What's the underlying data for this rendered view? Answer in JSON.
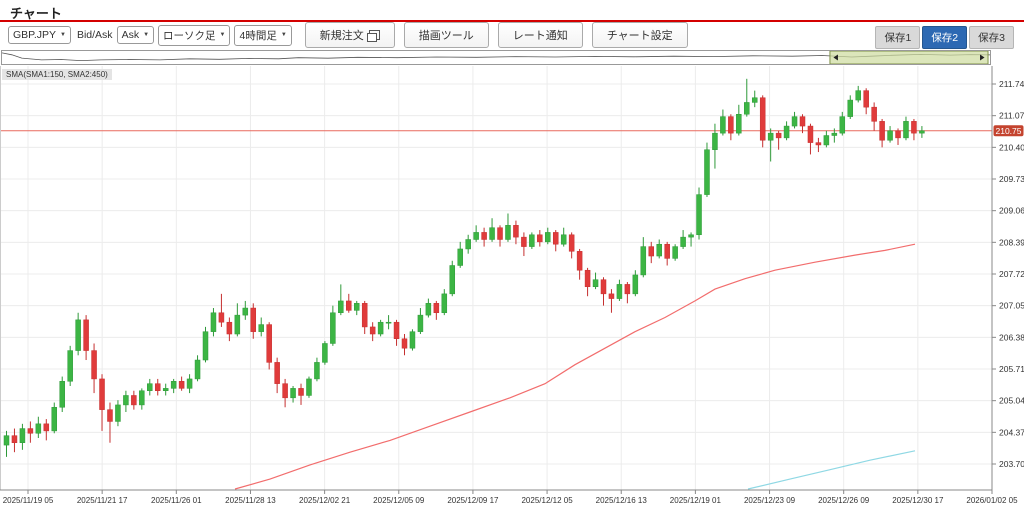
{
  "header": {
    "title": "チャート"
  },
  "toolbar": {
    "symbol_value": "GBP.JPY",
    "bid_ask_label": "Bid/Ask",
    "bid_ask_value": "Ask",
    "chart_type_value": "ローソク足",
    "timeframe_value": "4時間足",
    "new_order_label": "新規注文",
    "drawing_tools_label": "描画ツール",
    "rate_alert_label": "レート通知",
    "chart_settings_label": "チャート設定",
    "save_buttons": [
      {
        "label": "保存1",
        "active": false
      },
      {
        "label": "保存2",
        "active": true
      },
      {
        "label": "保存3",
        "active": false
      }
    ]
  },
  "indicator_label": "SMA(SMA1:150, SMA2:450)",
  "current_price_label": "210.75",
  "chart_data": {
    "type": "candlestick",
    "symbol": "GBP.JPY",
    "timeframe": "4時間足",
    "current_price": 210.75,
    "y_axis": {
      "ticks": [
        211.74,
        211.07,
        210.4,
        209.73,
        209.06,
        208.39,
        207.72,
        207.05,
        206.38,
        205.71,
        205.04,
        204.37,
        203.7
      ],
      "top_price": 211.74,
      "bottom_price": 203.7
    },
    "x_axis": {
      "labels": [
        "2025/11/19 05",
        "2025/11/21 17",
        "2025/11/26 01",
        "2025/11/28 13",
        "2025/12/02 21",
        "2025/12/05 09",
        "2025/12/09 17",
        "2025/12/12 05",
        "2025/12/16 13",
        "2025/12/19 01",
        "2025/12/23 09",
        "2025/12/26 09",
        "2025/12/30 17",
        "2026/01/02 05"
      ]
    },
    "candles": [
      [
        204.1,
        204.4,
        203.85,
        204.3
      ],
      [
        204.3,
        204.45,
        203.95,
        204.15
      ],
      [
        204.15,
        204.55,
        204.0,
        204.45
      ],
      [
        204.45,
        204.6,
        204.15,
        204.35
      ],
      [
        204.35,
        204.7,
        204.25,
        204.55
      ],
      [
        204.55,
        204.65,
        204.2,
        204.4
      ],
      [
        204.4,
        205.0,
        204.35,
        204.9
      ],
      [
        204.9,
        205.55,
        204.8,
        205.45
      ],
      [
        205.45,
        206.2,
        205.35,
        206.1
      ],
      [
        206.1,
        206.9,
        206.0,
        206.75
      ],
      [
        206.75,
        206.85,
        205.9,
        206.1
      ],
      [
        206.1,
        206.25,
        205.2,
        205.5
      ],
      [
        205.5,
        205.6,
        204.4,
        204.85
      ],
      [
        204.85,
        205.0,
        204.15,
        204.6
      ],
      [
        204.6,
        205.05,
        204.5,
        204.95
      ],
      [
        204.95,
        205.25,
        204.8,
        205.15
      ],
      [
        205.15,
        205.25,
        204.85,
        204.95
      ],
      [
        204.95,
        205.3,
        204.85,
        205.25
      ],
      [
        205.25,
        205.5,
        205.15,
        205.4
      ],
      [
        205.4,
        205.5,
        205.15,
        205.25
      ],
      [
        205.25,
        205.4,
        205.15,
        205.3
      ],
      [
        205.3,
        205.5,
        205.2,
        205.45
      ],
      [
        205.45,
        205.55,
        205.25,
        205.3
      ],
      [
        205.3,
        205.6,
        205.2,
        205.5
      ],
      [
        205.5,
        206.0,
        205.45,
        205.9
      ],
      [
        205.9,
        206.6,
        205.85,
        206.5
      ],
      [
        206.5,
        207.0,
        206.4,
        206.9
      ],
      [
        206.9,
        207.3,
        206.6,
        206.7
      ],
      [
        206.7,
        206.8,
        206.3,
        206.45
      ],
      [
        206.45,
        207.1,
        206.4,
        206.85
      ],
      [
        206.85,
        207.15,
        206.75,
        207.0
      ],
      [
        207.0,
        207.1,
        206.35,
        206.5
      ],
      [
        206.5,
        206.8,
        206.4,
        206.65
      ],
      [
        206.65,
        206.7,
        205.7,
        205.85
      ],
      [
        205.85,
        205.95,
        205.2,
        205.4
      ],
      [
        205.4,
        205.5,
        204.9,
        205.1
      ],
      [
        205.1,
        205.35,
        205.0,
        205.3
      ],
      [
        205.3,
        205.4,
        204.95,
        205.15
      ],
      [
        205.15,
        205.55,
        205.1,
        205.5
      ],
      [
        205.5,
        205.95,
        205.45,
        205.85
      ],
      [
        205.85,
        206.3,
        205.8,
        206.25
      ],
      [
        206.25,
        207.05,
        206.2,
        206.9
      ],
      [
        206.9,
        207.5,
        206.85,
        207.15
      ],
      [
        207.15,
        207.3,
        206.9,
        206.95
      ],
      [
        206.95,
        207.15,
        206.85,
        207.1
      ],
      [
        207.1,
        207.15,
        206.45,
        206.6
      ],
      [
        206.6,
        206.7,
        206.3,
        206.45
      ],
      [
        206.45,
        206.75,
        206.4,
        206.7
      ],
      [
        206.7,
        206.85,
        206.55,
        206.7
      ],
      [
        206.7,
        206.75,
        206.2,
        206.35
      ],
      [
        206.35,
        206.45,
        206.0,
        206.15
      ],
      [
        206.15,
        206.55,
        206.1,
        206.5
      ],
      [
        206.5,
        207.0,
        206.45,
        206.85
      ],
      [
        206.85,
        207.2,
        206.8,
        207.1
      ],
      [
        207.1,
        207.15,
        206.75,
        206.9
      ],
      [
        206.9,
        207.4,
        206.85,
        207.3
      ],
      [
        207.3,
        208.0,
        207.25,
        207.9
      ],
      [
        207.9,
        208.4,
        207.85,
        208.25
      ],
      [
        208.25,
        208.55,
        208.15,
        208.45
      ],
      [
        208.45,
        208.75,
        208.4,
        208.6
      ],
      [
        208.6,
        208.7,
        208.3,
        208.45
      ],
      [
        208.45,
        208.9,
        208.4,
        208.7
      ],
      [
        208.7,
        208.75,
        208.3,
        208.45
      ],
      [
        208.45,
        209.0,
        208.4,
        208.75
      ],
      [
        208.75,
        208.85,
        208.35,
        208.5
      ],
      [
        208.5,
        208.6,
        208.1,
        208.3
      ],
      [
        208.3,
        208.6,
        208.25,
        208.55
      ],
      [
        208.55,
        208.65,
        208.3,
        208.4
      ],
      [
        208.4,
        208.7,
        208.35,
        208.6
      ],
      [
        208.6,
        208.65,
        208.2,
        208.35
      ],
      [
        208.35,
        208.7,
        208.3,
        208.55
      ],
      [
        208.55,
        208.6,
        208.05,
        208.2
      ],
      [
        208.2,
        208.25,
        207.6,
        207.8
      ],
      [
        207.8,
        207.85,
        207.25,
        207.45
      ],
      [
        207.45,
        207.75,
        207.4,
        207.6
      ],
      [
        207.6,
        207.65,
        207.05,
        207.3
      ],
      [
        207.3,
        207.4,
        206.9,
        207.2
      ],
      [
        207.2,
        207.6,
        207.15,
        207.5
      ],
      [
        207.5,
        207.55,
        207.1,
        207.3
      ],
      [
        207.3,
        207.8,
        207.25,
        207.7
      ],
      [
        207.7,
        208.5,
        207.65,
        208.3
      ],
      [
        208.3,
        208.4,
        207.95,
        208.1
      ],
      [
        208.1,
        208.45,
        208.05,
        208.35
      ],
      [
        208.35,
        208.4,
        207.9,
        208.05
      ],
      [
        208.05,
        208.35,
        208.0,
        208.3
      ],
      [
        208.3,
        208.65,
        208.25,
        208.5
      ],
      [
        208.5,
        208.6,
        208.3,
        208.55
      ],
      [
        208.55,
        209.55,
        208.45,
        209.4
      ],
      [
        209.4,
        210.5,
        209.35,
        210.35
      ],
      [
        210.35,
        210.9,
        209.95,
        210.7
      ],
      [
        210.7,
        211.2,
        210.65,
        211.05
      ],
      [
        211.05,
        211.1,
        210.55,
        210.7
      ],
      [
        210.7,
        211.3,
        210.65,
        211.1
      ],
      [
        211.1,
        211.85,
        211.05,
        211.35
      ],
      [
        211.35,
        211.6,
        211.25,
        211.45
      ],
      [
        211.45,
        211.5,
        210.4,
        210.55
      ],
      [
        210.55,
        210.8,
        210.1,
        210.7
      ],
      [
        210.7,
        210.75,
        210.35,
        210.6
      ],
      [
        210.6,
        210.95,
        210.55,
        210.85
      ],
      [
        210.85,
        211.15,
        210.8,
        211.05
      ],
      [
        211.05,
        211.1,
        210.7,
        210.85
      ],
      [
        210.85,
        210.9,
        210.25,
        210.5
      ],
      [
        210.5,
        210.6,
        210.3,
        210.45
      ],
      [
        210.45,
        210.75,
        210.4,
        210.65
      ],
      [
        210.65,
        210.8,
        210.5,
        210.7
      ],
      [
        210.7,
        211.15,
        210.65,
        211.05
      ],
      [
        211.05,
        211.5,
        211.0,
        211.4
      ],
      [
        211.4,
        211.7,
        211.35,
        211.6
      ],
      [
        211.6,
        211.65,
        211.1,
        211.25
      ],
      [
        211.25,
        211.35,
        210.75,
        210.95
      ],
      [
        210.95,
        211.0,
        210.4,
        210.55
      ],
      [
        210.55,
        210.85,
        210.5,
        210.75
      ],
      [
        210.75,
        210.8,
        210.45,
        210.6
      ],
      [
        210.6,
        211.05,
        210.55,
        210.95
      ],
      [
        210.95,
        211.0,
        210.55,
        210.7
      ],
      [
        210.7,
        210.85,
        210.6,
        210.75
      ]
    ],
    "sma1": {
      "name": "SMA1",
      "period": 150,
      "color": "#f26d6d",
      "points": [
        [
          235,
          203.15
        ],
        [
          270,
          203.38
        ],
        [
          310,
          203.68
        ],
        [
          350,
          203.95
        ],
        [
          390,
          204.2
        ],
        [
          430,
          204.5
        ],
        [
          470,
          204.8
        ],
        [
          510,
          205.1
        ],
        [
          545,
          205.4
        ],
        [
          575,
          205.8
        ],
        [
          605,
          206.15
        ],
        [
          635,
          206.5
        ],
        [
          665,
          206.8
        ],
        [
          695,
          207.15
        ],
        [
          715,
          207.4
        ],
        [
          745,
          207.62
        ],
        [
          775,
          207.8
        ],
        [
          815,
          207.97
        ],
        [
          855,
          208.12
        ],
        [
          885,
          208.22
        ],
        [
          915,
          208.35
        ]
      ]
    },
    "sma2": {
      "name": "SMA2",
      "period": 450,
      "color": "#8fd8e4",
      "points": [
        [
          748,
          203.14
        ],
        [
          790,
          203.38
        ],
        [
          830,
          203.58
        ],
        [
          870,
          203.78
        ],
        [
          915,
          203.98
        ]
      ]
    },
    "navigator": {
      "points": [
        [
          0,
          0.08
        ],
        [
          0.01,
          0.25
        ],
        [
          0.02,
          0.55
        ],
        [
          0.04,
          0.72
        ],
        [
          0.06,
          0.68
        ],
        [
          0.08,
          0.78
        ],
        [
          0.1,
          0.72
        ],
        [
          0.13,
          0.68
        ],
        [
          0.16,
          0.72
        ],
        [
          0.19,
          0.62
        ],
        [
          0.22,
          0.66
        ],
        [
          0.25,
          0.58
        ],
        [
          0.28,
          0.62
        ],
        [
          0.3,
          0.52
        ],
        [
          0.33,
          0.56
        ],
        [
          0.36,
          0.48
        ],
        [
          0.4,
          0.52
        ],
        [
          0.44,
          0.45
        ],
        [
          0.48,
          0.48
        ],
        [
          0.52,
          0.42
        ],
        [
          0.56,
          0.45
        ],
        [
          0.6,
          0.4
        ],
        [
          0.64,
          0.44
        ],
        [
          0.68,
          0.38
        ],
        [
          0.72,
          0.42
        ],
        [
          0.76,
          0.35
        ],
        [
          0.8,
          0.38
        ],
        [
          0.83,
          0.32
        ],
        [
          0.86,
          0.45
        ],
        [
          0.88,
          0.38
        ],
        [
          0.9,
          0.3
        ],
        [
          0.93,
          0.22
        ],
        [
          0.96,
          0.28
        ],
        [
          0.98,
          0.24
        ],
        [
          1.0,
          0.26
        ]
      ],
      "selection": [
        0.838,
        0.998
      ]
    },
    "colors": {
      "up": "#3cb544",
      "up_border": "#2e9939",
      "down": "#e03b3b",
      "down_border": "#c52f2f",
      "price_line": "#e96a5f",
      "price_badge": "#c4432e",
      "grid": "#ececec",
      "axis": "#888",
      "selection_fill": "#cddc9e",
      "selection_border": "#7f9147"
    }
  }
}
